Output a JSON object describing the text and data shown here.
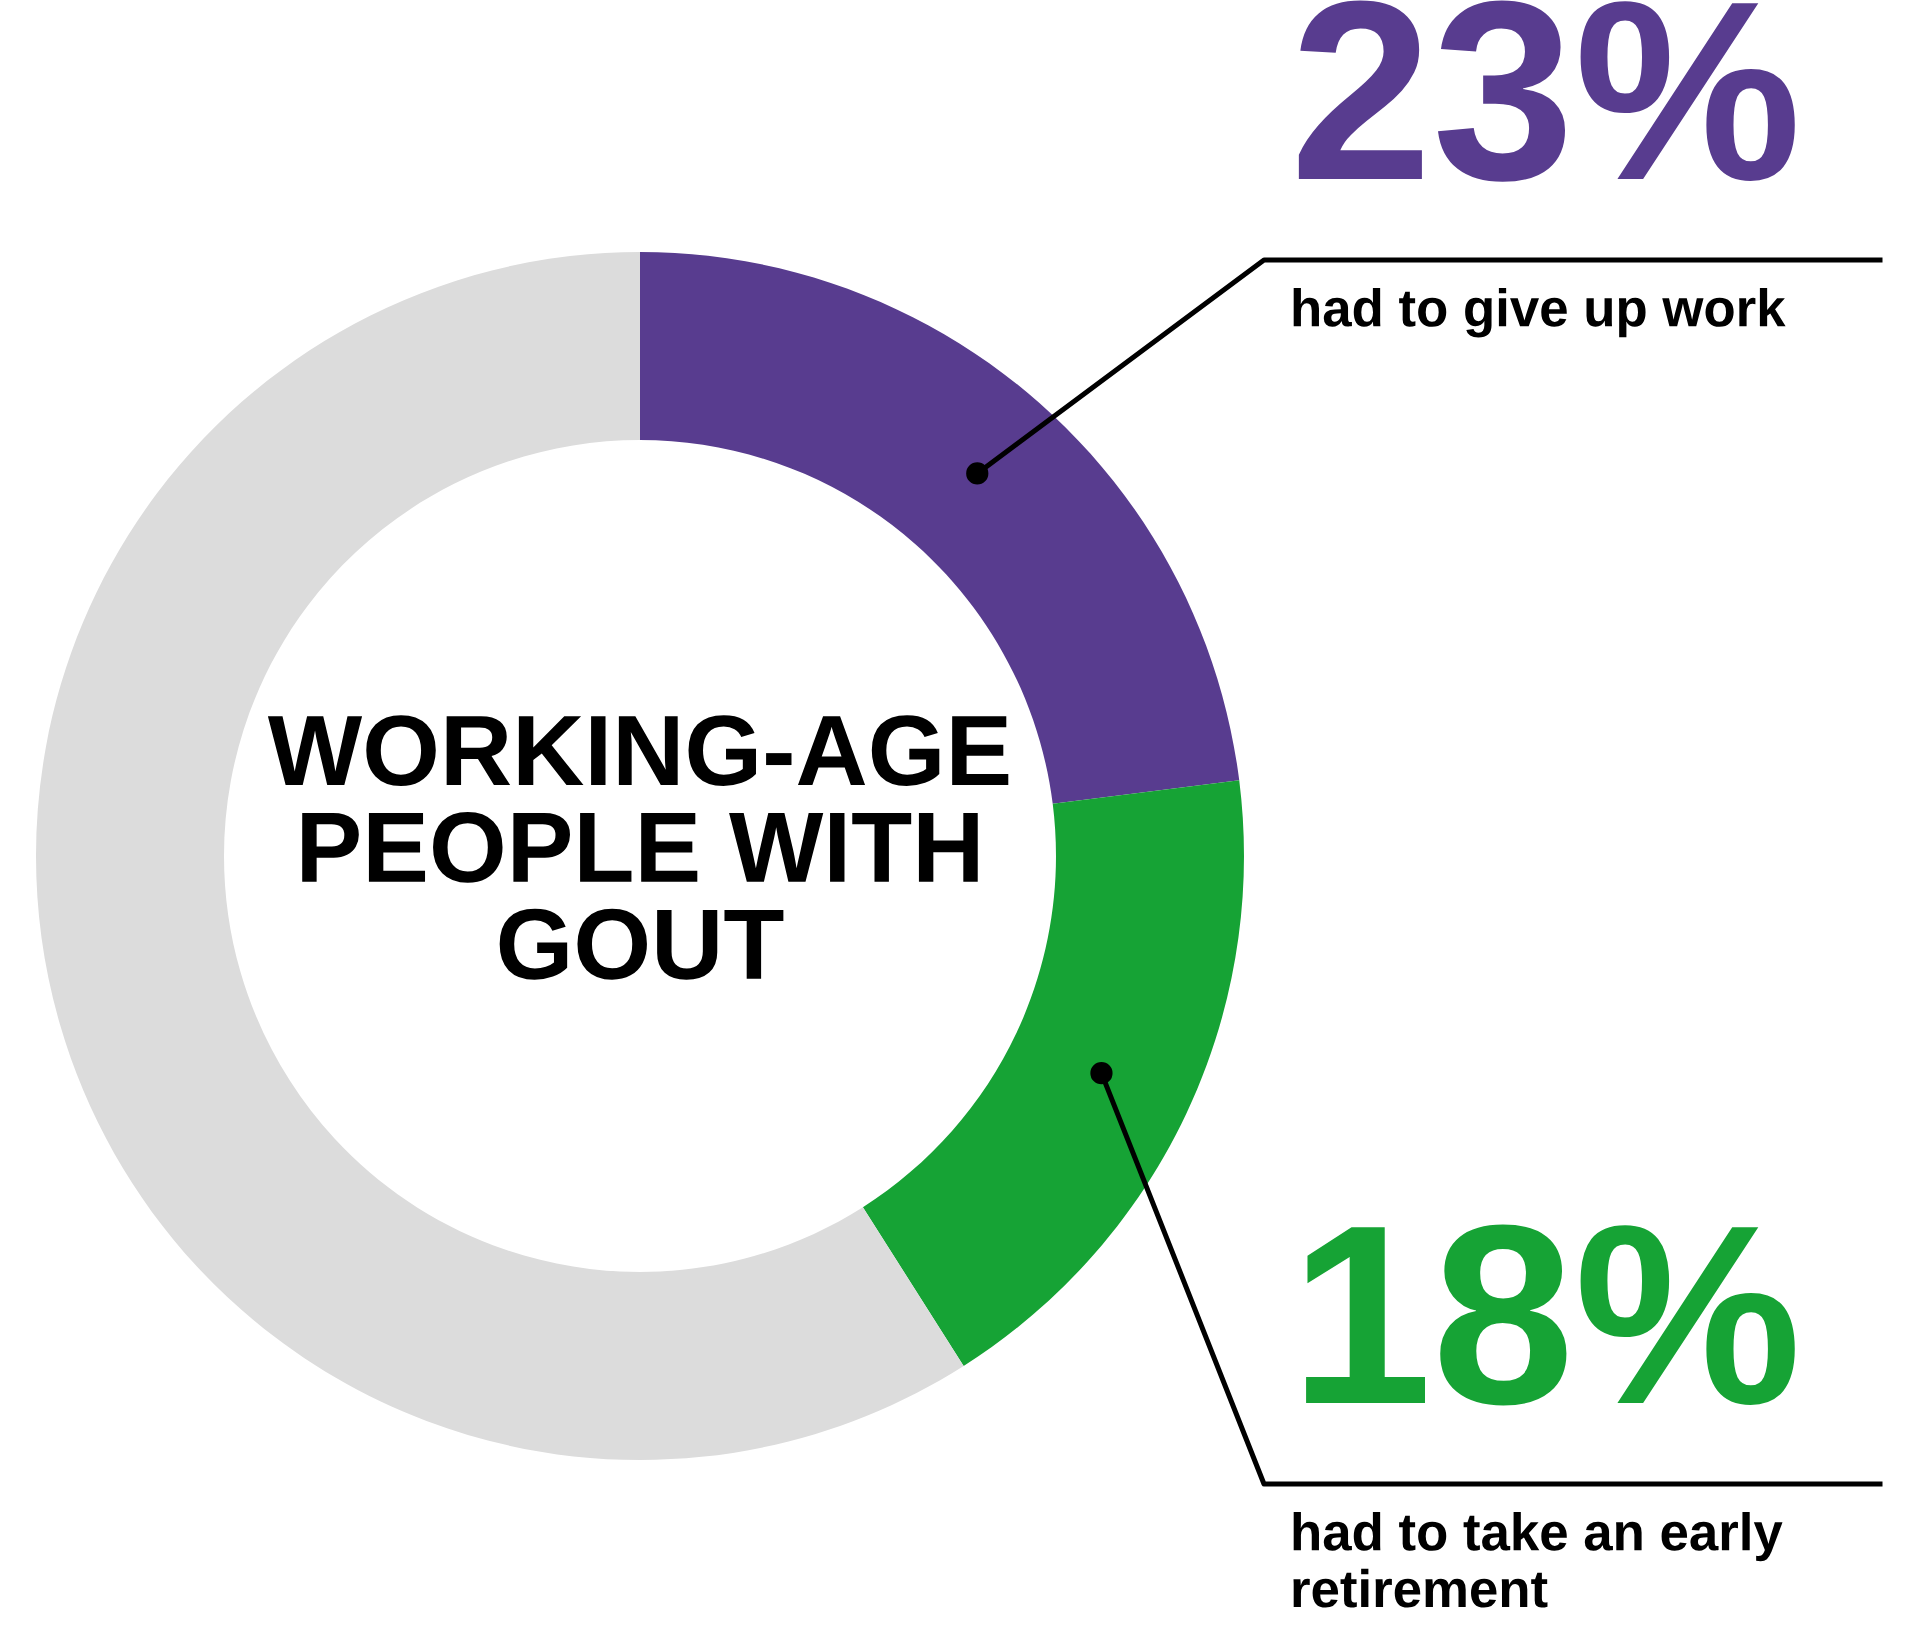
{
  "chart_data": {
    "type": "donut",
    "title": "WORKING-AGE PEOPLE WITH GOUT",
    "categories": [
      "had to give up work",
      "had to take an early retirement",
      null
    ],
    "values": [
      23,
      18,
      59
    ],
    "colors": [
      "#583c8f",
      "#16a335",
      "#dcdcdc"
    ],
    "value_labels": [
      "23%",
      "18%",
      null
    ]
  }
}
